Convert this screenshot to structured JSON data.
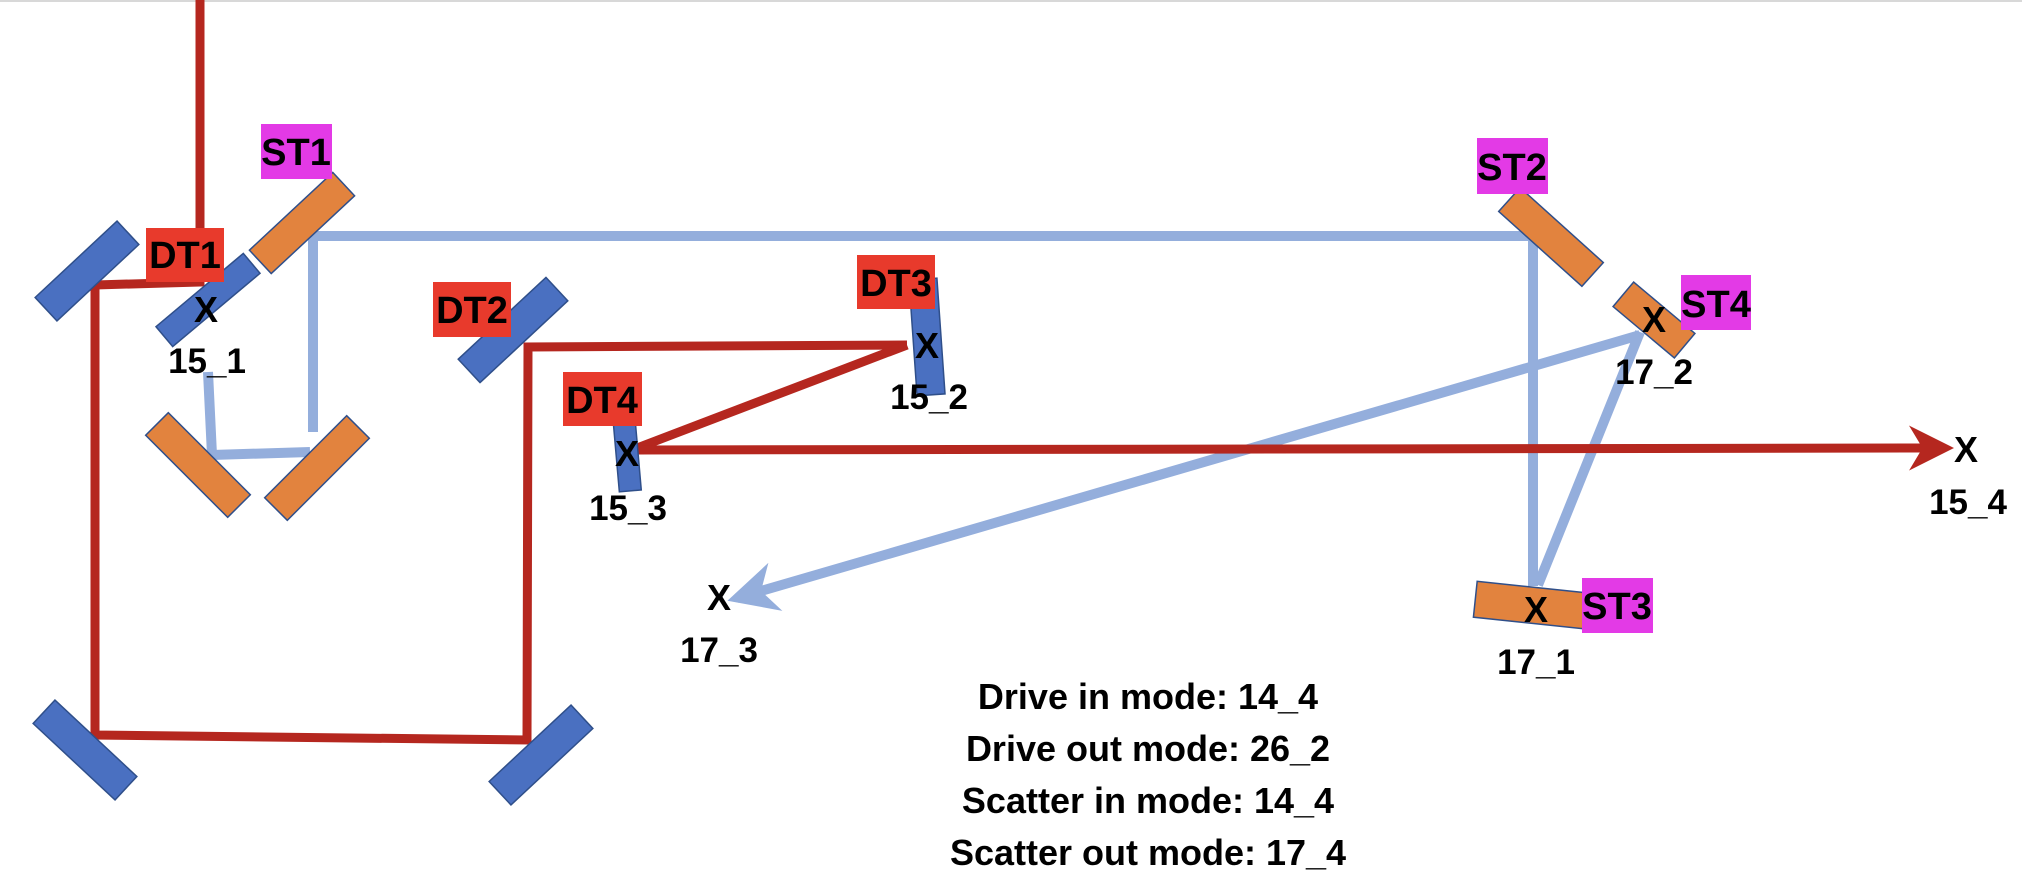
{
  "colors": {
    "drive_beam": "#b5271f",
    "scatter_beam": "#94aedc",
    "drive_mirror": "#4a70c1",
    "scatter_mirror": "#e2833e",
    "drive_tag": "#e83a2c",
    "scatter_tag": "#e33ae6",
    "mirror_edge": "#2f4f8a",
    "text": "#000000"
  },
  "tags": {
    "dt1": "DT1",
    "dt2": "DT2",
    "dt3": "DT3",
    "dt4": "DT4",
    "st1": "ST1",
    "st2": "ST2",
    "st3": "ST3",
    "st4": "ST4"
  },
  "marker": "X",
  "points": {
    "p15_1": "15_1",
    "p15_2": "15_2",
    "p15_3": "15_3",
    "p15_4": "15_4",
    "p17_1": "17_1",
    "p17_2": "17_2",
    "p17_3": "17_3"
  },
  "legend": {
    "drive_in": "Drive in mode: 14_4",
    "drive_out": "Drive out mode: 26_2",
    "scatter_in": "Scatter in mode: 14_4",
    "scatter_out": "Scatter out mode: 17_4"
  }
}
